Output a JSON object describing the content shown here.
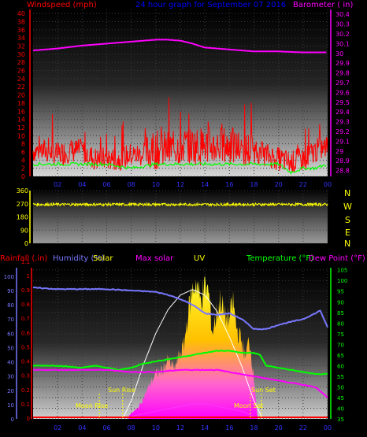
{
  "header": {
    "windspeed_label": "Windspeed (mph)",
    "title": "24 hour graph for  September 07 2016",
    "barometer_label": "Barometer ( in)"
  },
  "dir_labels": [
    "N",
    "W",
    "S",
    "E",
    "N"
  ],
  "bottom_header": {
    "rainfall": "Rainfall (.in)",
    "humidity": "Humidity (%)",
    "solar": "Solar",
    "max_solar": "Max solar",
    "uv": "UV",
    "temperature": "Temperature (°F)",
    "dew_point": "Dew Point (°F)"
  },
  "annotations": {
    "moon_rise": "Moon Rise",
    "sun_rise": "Sun Rise",
    "sun_set": "Sun Set",
    "moon_set": "Moon Set"
  },
  "colors": {
    "wind": "#ff0000",
    "gust_base": "#00ff00",
    "barometer": "#ff00ff",
    "direction": "#ffff00",
    "humidity": "#7777ff",
    "temperature": "#00ff00",
    "dewpoint": "#ff00ff",
    "max_solar": "#ffffff",
    "solar": "#ffd700",
    "uv": "#ff33ff",
    "rain": "#ff0000",
    "axis_blue": "#4444ff",
    "axis_green": "#00ff00"
  },
  "chart_data": [
    {
      "type": "line",
      "title": "24 hour graph for  September 07 2016",
      "x_ticks": [
        "02",
        "04",
        "06",
        "08",
        "10",
        "12",
        "14",
        "16",
        "18",
        "20",
        "22",
        "00"
      ],
      "y_left_label": "Windspeed (mph)",
      "y_left_ticks": [
        0,
        2,
        4,
        6,
        8,
        10,
        12,
        14,
        16,
        18,
        20,
        22,
        24,
        26,
        28,
        30,
        32,
        34,
        36,
        38,
        40
      ],
      "y_left_range": [
        0,
        41
      ],
      "y_right_label": "Barometer ( in)",
      "y_right_ticks": [
        "28.8",
        "28.9",
        "29",
        "29.1",
        "29.2",
        "29.3",
        "29.4",
        "29.5",
        "29.6",
        "29.7",
        "29.8",
        "29.9",
        "30",
        "30.1",
        "30.2",
        "30.3",
        "30.4"
      ],
      "y_right_range": [
        28.74,
        30.45
      ],
      "x_range_hours": [
        0,
        24
      ],
      "series": [
        {
          "name": "Barometer",
          "x": [
            0,
            2,
            4,
            6,
            8,
            10,
            11,
            12,
            13,
            14,
            15,
            16,
            17,
            18,
            20,
            22,
            24
          ],
          "y": [
            30.03,
            30.05,
            30.08,
            30.1,
            30.12,
            30.14,
            30.14,
            30.13,
            30.1,
            30.06,
            30.05,
            30.04,
            30.03,
            30.02,
            30.02,
            30.01,
            30.01
          ]
        },
        {
          "name": "Windspeed",
          "x": [
            0,
            1,
            2,
            3,
            4,
            5,
            6,
            7,
            8,
            9,
            10,
            11,
            12,
            13,
            14,
            15,
            16,
            17,
            18,
            19,
            20,
            21,
            22,
            23,
            24
          ],
          "y": [
            6,
            6,
            5,
            6,
            6,
            4,
            4,
            4,
            5,
            5,
            6,
            6,
            7,
            7,
            7,
            7,
            7,
            6,
            6,
            5,
            4,
            3,
            4,
            6,
            7
          ]
        },
        {
          "name": "Wind base",
          "x": [
            0,
            2,
            4,
            6,
            8,
            10,
            12,
            14,
            16,
            18,
            20,
            21,
            22,
            23,
            24
          ],
          "y": [
            3,
            3,
            3,
            3,
            2,
            3,
            3,
            3,
            3,
            3,
            3,
            1,
            2,
            2,
            3
          ]
        }
      ]
    },
    {
      "type": "line",
      "title": "Wind direction",
      "y_left_ticks": [
        0,
        90,
        180,
        270,
        360
      ],
      "y_range": [
        0,
        360
      ],
      "x_range_hours": [
        0,
        24
      ],
      "series": [
        {
          "name": "Direction",
          "x": [
            0,
            24
          ],
          "y": [
            265,
            265
          ]
        }
      ]
    },
    {
      "type": "area",
      "x_ticks": [
        "02",
        "04",
        "06",
        "08",
        "10",
        "12",
        "14",
        "16",
        "18",
        "20",
        "22",
        "00"
      ],
      "x_range_hours": [
        0,
        24
      ],
      "y_left_rain_ticks": [
        "0",
        "0.1",
        "0.2",
        "0.3",
        "0.4",
        "0.5",
        "0.6",
        "0.7",
        "0.8",
        "0.9",
        "1",
        "1.1"
      ],
      "y_left_humidity_ticks": [
        0,
        10,
        20,
        30,
        40,
        50,
        60,
        70,
        80,
        90,
        100
      ],
      "y_right_temp_ticks": [
        35,
        40,
        45,
        50,
        55,
        60,
        65,
        70,
        75,
        80,
        85,
        90,
        95,
        100,
        105
      ],
      "y_right_temp_range": [
        35,
        106
      ],
      "humidity_range": [
        0,
        106
      ],
      "series": [
        {
          "name": "Humidity",
          "x": [
            0,
            2,
            4,
            6,
            8,
            10,
            11,
            12,
            13,
            14,
            15,
            16,
            17,
            18,
            19,
            20,
            21,
            22,
            23,
            23.4,
            24
          ],
          "y": [
            92,
            91,
            91,
            91,
            90,
            89,
            87,
            84,
            80,
            74,
            73,
            74,
            70,
            63,
            63,
            66,
            68,
            70,
            74,
            76,
            64
          ]
        },
        {
          "name": "Temperature",
          "x": [
            0,
            2,
            4,
            5,
            6,
            7,
            8,
            9,
            10,
            11,
            12,
            13,
            14,
            15,
            16,
            17,
            18,
            18.5,
            19,
            20,
            21,
            22,
            23,
            24
          ],
          "y": [
            60,
            60,
            59,
            60,
            59,
            58,
            59,
            61,
            62,
            63,
            64,
            65,
            66,
            67,
            67,
            66,
            66,
            65,
            60,
            59,
            58,
            57,
            56,
            56
          ]
        },
        {
          "name": "Dew Point",
          "x": [
            0,
            2,
            4,
            6,
            8,
            10,
            12,
            13,
            14,
            15,
            16,
            17,
            18,
            19,
            20,
            21,
            22,
            23,
            24
          ],
          "y": [
            58,
            58,
            58,
            58,
            57,
            57,
            58,
            58,
            58,
            58,
            57,
            56,
            55,
            54,
            53,
            52,
            51,
            50,
            45
          ]
        },
        {
          "name": "Max solar",
          "x": [
            7.3,
            8,
            9,
            10,
            11,
            12,
            13,
            14,
            15,
            16,
            17,
            18,
            18.7
          ],
          "y": [
            0,
            100,
            300,
            470,
            600,
            680,
            710,
            680,
            590,
            450,
            290,
            100,
            0
          ]
        },
        {
          "name": "Solar",
          "x": [
            7.8,
            8.5,
            9,
            9.5,
            10,
            10.5,
            11,
            11.5,
            12,
            12.3,
            12.6,
            13,
            13.3,
            13.6,
            14,
            14.3,
            14.6,
            15,
            15.3,
            15.6,
            16,
            16.3,
            16.6,
            17,
            17.3,
            17.6,
            18,
            18.3
          ],
          "y": [
            20,
            60,
            120,
            200,
            260,
            280,
            340,
            290,
            380,
            430,
            600,
            750,
            800,
            690,
            760,
            740,
            500,
            620,
            700,
            590,
            580,
            680,
            520,
            450,
            350,
            470,
            240,
            0
          ]
        },
        {
          "name": "UV",
          "x": [
            8,
            9,
            10,
            11,
            12,
            13,
            14,
            15,
            16,
            17,
            18,
            18.3
          ],
          "y": [
            1,
            2,
            3,
            4,
            5,
            6,
            6,
            5,
            4,
            3,
            1,
            0
          ]
        },
        {
          "name": "Rainfall",
          "x": [
            0,
            24
          ],
          "y": [
            0,
            0
          ]
        }
      ]
    }
  ]
}
